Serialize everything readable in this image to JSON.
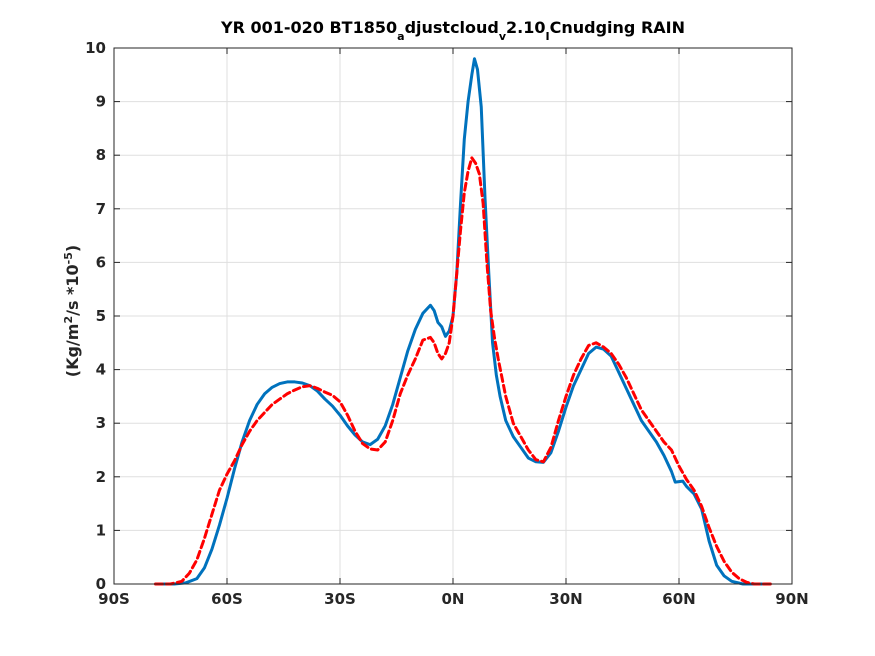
{
  "chart_data": {
    "type": "line",
    "title": {
      "parts": [
        {
          "text": "YR 001-020 BT1850",
          "shift": "none"
        },
        {
          "text": "a",
          "shift": "sub"
        },
        {
          "text": "djustcloud",
          "shift": "none"
        },
        {
          "text": "v",
          "shift": "sub"
        },
        {
          "text": "2.10",
          "shift": "none"
        },
        {
          "text": "I",
          "shift": "sub"
        },
        {
          "text": "Cnudging RAIN",
          "shift": "none"
        }
      ]
    },
    "ylabel": {
      "parts": [
        {
          "text": "(Kg/m",
          "shift": "none"
        },
        {
          "text": "2",
          "shift": "super"
        },
        {
          "text": "/s   *10",
          "shift": "none"
        },
        {
          "text": "-5",
          "shift": "super"
        },
        {
          "text": ")",
          "shift": "none"
        }
      ]
    },
    "xlim": [
      -90,
      90
    ],
    "ylim": [
      0,
      10
    ],
    "grid": true,
    "x_ticks": [
      {
        "value": -90,
        "label": "90S"
      },
      {
        "value": -60,
        "label": "60S"
      },
      {
        "value": -30,
        "label": "30S"
      },
      {
        "value": 0,
        "label": "0N"
      },
      {
        "value": 30,
        "label": "30N"
      },
      {
        "value": 60,
        "label": "60N"
      },
      {
        "value": 90,
        "label": "90N"
      }
    ],
    "y_ticks": [
      {
        "value": 0,
        "label": "0"
      },
      {
        "value": 1,
        "label": "1"
      },
      {
        "value": 2,
        "label": "2"
      },
      {
        "value": 3,
        "label": "3"
      },
      {
        "value": 4,
        "label": "4"
      },
      {
        "value": 5,
        "label": "5"
      },
      {
        "value": 6,
        "label": "6"
      },
      {
        "value": 7,
        "label": "7"
      },
      {
        "value": 8,
        "label": "8"
      },
      {
        "value": 9,
        "label": "9"
      },
      {
        "value": 10,
        "label": "10"
      }
    ],
    "series": [
      {
        "color": "#0072BD",
        "line_style": "solid",
        "points": [
          [
            -78,
            0.0
          ],
          [
            -74,
            0.0
          ],
          [
            -71,
            0.02
          ],
          [
            -68,
            0.1
          ],
          [
            -66,
            0.3
          ],
          [
            -64,
            0.65
          ],
          [
            -62,
            1.1
          ],
          [
            -60,
            1.6
          ],
          [
            -58,
            2.15
          ],
          [
            -56,
            2.65
          ],
          [
            -54,
            3.05
          ],
          [
            -52,
            3.35
          ],
          [
            -50,
            3.55
          ],
          [
            -48,
            3.67
          ],
          [
            -46,
            3.74
          ],
          [
            -44,
            3.77
          ],
          [
            -42,
            3.77
          ],
          [
            -40,
            3.75
          ],
          [
            -38,
            3.7
          ],
          [
            -36,
            3.6
          ],
          [
            -34,
            3.45
          ],
          [
            -32,
            3.32
          ],
          [
            -30,
            3.15
          ],
          [
            -28,
            2.95
          ],
          [
            -26,
            2.78
          ],
          [
            -24,
            2.65
          ],
          [
            -22,
            2.6
          ],
          [
            -20,
            2.7
          ],
          [
            -18,
            2.95
          ],
          [
            -16,
            3.35
          ],
          [
            -14,
            3.85
          ],
          [
            -12,
            4.35
          ],
          [
            -10,
            4.75
          ],
          [
            -8,
            5.05
          ],
          [
            -6,
            5.2
          ],
          [
            -5,
            5.1
          ],
          [
            -4,
            4.88
          ],
          [
            -3,
            4.8
          ],
          [
            -2,
            4.62
          ],
          [
            -1,
            4.72
          ],
          [
            0,
            5.0
          ],
          [
            1,
            5.8
          ],
          [
            2,
            7.1
          ],
          [
            3,
            8.3
          ],
          [
            4,
            9.0
          ],
          [
            5,
            9.5
          ],
          [
            5.7,
            9.8
          ],
          [
            6.5,
            9.6
          ],
          [
            7.5,
            8.9
          ],
          [
            8.5,
            7.2
          ],
          [
            9.5,
            5.8
          ],
          [
            10.5,
            4.5
          ],
          [
            11.5,
            3.9
          ],
          [
            12.5,
            3.5
          ],
          [
            14,
            3.05
          ],
          [
            16,
            2.75
          ],
          [
            18,
            2.55
          ],
          [
            20,
            2.35
          ],
          [
            22,
            2.28
          ],
          [
            24,
            2.27
          ],
          [
            26,
            2.45
          ],
          [
            28,
            2.85
          ],
          [
            30,
            3.3
          ],
          [
            32,
            3.7
          ],
          [
            34,
            4.0
          ],
          [
            36,
            4.3
          ],
          [
            38,
            4.42
          ],
          [
            40,
            4.38
          ],
          [
            42,
            4.25
          ],
          [
            44,
            3.95
          ],
          [
            46,
            3.65
          ],
          [
            48,
            3.35
          ],
          [
            50,
            3.05
          ],
          [
            52,
            2.85
          ],
          [
            54,
            2.65
          ],
          [
            56,
            2.4
          ],
          [
            58,
            2.1
          ],
          [
            59,
            1.9
          ],
          [
            61,
            1.92
          ],
          [
            62,
            1.82
          ],
          [
            64,
            1.68
          ],
          [
            66,
            1.4
          ],
          [
            68,
            0.8
          ],
          [
            70,
            0.35
          ],
          [
            72,
            0.15
          ],
          [
            74,
            0.05
          ],
          [
            77,
            0.0
          ],
          [
            82,
            0.0
          ]
        ]
      },
      {
        "color": "#FF0000",
        "line_style": "dashed",
        "points": [
          [
            -79,
            0.0
          ],
          [
            -75,
            0.0
          ],
          [
            -72,
            0.05
          ],
          [
            -70,
            0.2
          ],
          [
            -68,
            0.45
          ],
          [
            -66,
            0.85
          ],
          [
            -64,
            1.3
          ],
          [
            -62,
            1.75
          ],
          [
            -60,
            2.05
          ],
          [
            -58,
            2.3
          ],
          [
            -56,
            2.6
          ],
          [
            -54,
            2.85
          ],
          [
            -52,
            3.05
          ],
          [
            -50,
            3.2
          ],
          [
            -48,
            3.35
          ],
          [
            -46,
            3.45
          ],
          [
            -44,
            3.55
          ],
          [
            -42,
            3.62
          ],
          [
            -40,
            3.68
          ],
          [
            -38,
            3.7
          ],
          [
            -36,
            3.65
          ],
          [
            -34,
            3.58
          ],
          [
            -32,
            3.52
          ],
          [
            -30,
            3.4
          ],
          [
            -28,
            3.15
          ],
          [
            -26,
            2.85
          ],
          [
            -24,
            2.62
          ],
          [
            -22,
            2.52
          ],
          [
            -20,
            2.5
          ],
          [
            -18,
            2.65
          ],
          [
            -16,
            3.05
          ],
          [
            -14,
            3.55
          ],
          [
            -12,
            3.9
          ],
          [
            -10,
            4.2
          ],
          [
            -8,
            4.55
          ],
          [
            -6,
            4.6
          ],
          [
            -5,
            4.5
          ],
          [
            -4,
            4.3
          ],
          [
            -3,
            4.2
          ],
          [
            -2,
            4.3
          ],
          [
            -1,
            4.5
          ],
          [
            0,
            5.0
          ],
          [
            1,
            5.8
          ],
          [
            2,
            6.6
          ],
          [
            3,
            7.3
          ],
          [
            4,
            7.7
          ],
          [
            5,
            7.95
          ],
          [
            6,
            7.85
          ],
          [
            7,
            7.65
          ],
          [
            8,
            7.1
          ],
          [
            9,
            6.0
          ],
          [
            10,
            5.1
          ],
          [
            11,
            4.6
          ],
          [
            12,
            4.2
          ],
          [
            13,
            3.85
          ],
          [
            14,
            3.5
          ],
          [
            16,
            3.0
          ],
          [
            18,
            2.75
          ],
          [
            20,
            2.5
          ],
          [
            22,
            2.32
          ],
          [
            24,
            2.28
          ],
          [
            26,
            2.55
          ],
          [
            28,
            3.05
          ],
          [
            30,
            3.5
          ],
          [
            32,
            3.9
          ],
          [
            34,
            4.2
          ],
          [
            36,
            4.45
          ],
          [
            38,
            4.5
          ],
          [
            40,
            4.42
          ],
          [
            42,
            4.3
          ],
          [
            44,
            4.1
          ],
          [
            46,
            3.85
          ],
          [
            48,
            3.55
          ],
          [
            50,
            3.25
          ],
          [
            52,
            3.05
          ],
          [
            54,
            2.85
          ],
          [
            56,
            2.65
          ],
          [
            58,
            2.5
          ],
          [
            60,
            2.2
          ],
          [
            62,
            1.95
          ],
          [
            64,
            1.75
          ],
          [
            66,
            1.45
          ],
          [
            68,
            1.05
          ],
          [
            70,
            0.7
          ],
          [
            72,
            0.42
          ],
          [
            74,
            0.22
          ],
          [
            76,
            0.1
          ],
          [
            78,
            0.03
          ],
          [
            80,
            0.0
          ],
          [
            85,
            0.0
          ]
        ]
      }
    ]
  }
}
